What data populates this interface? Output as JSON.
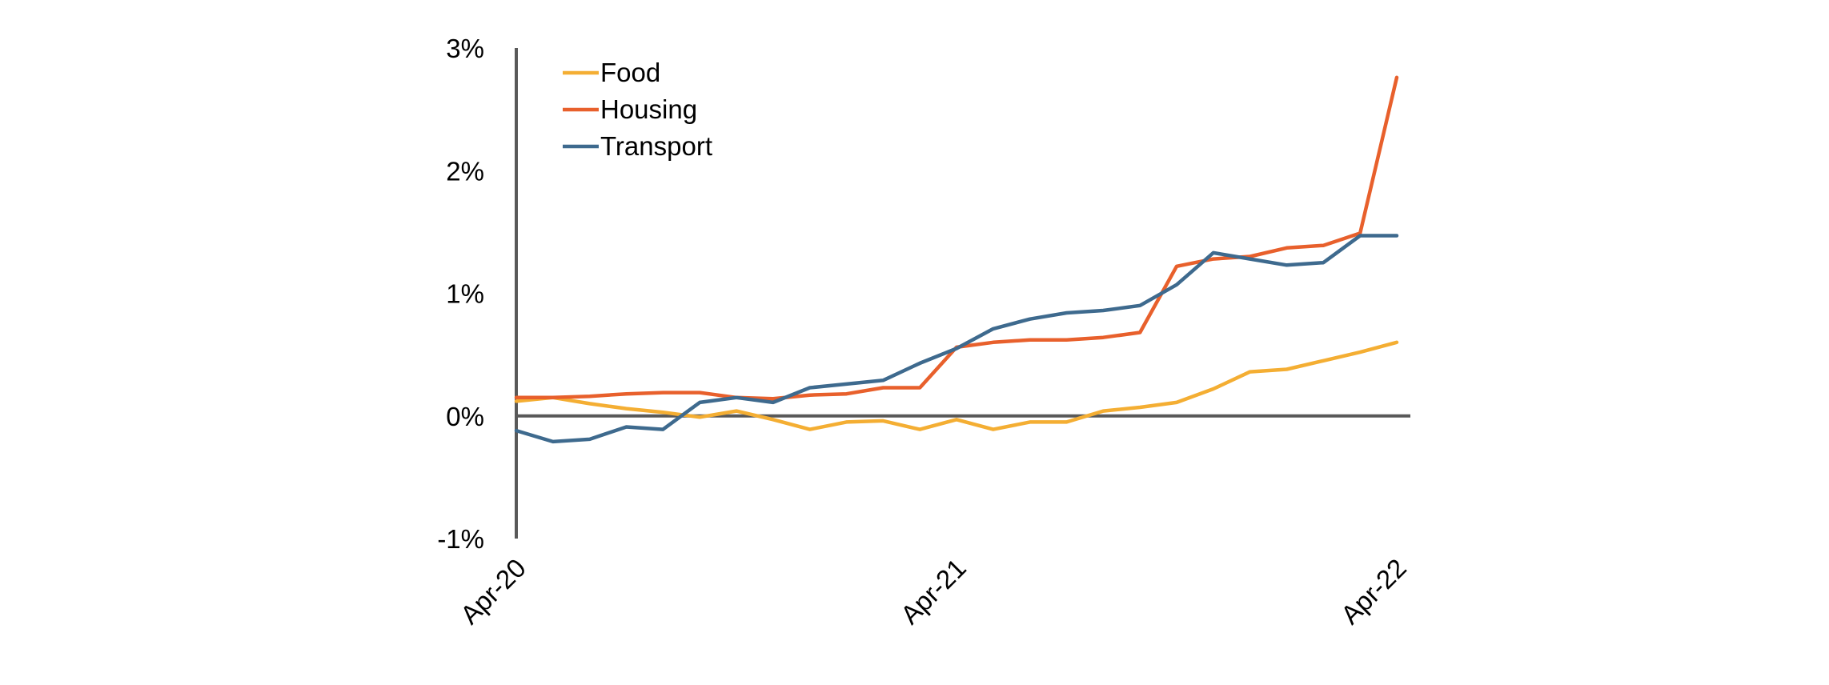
{
  "chart_data": {
    "type": "line",
    "title": "",
    "xlabel": "",
    "ylabel": "",
    "ylim": [
      -1,
      3
    ],
    "yticks": [
      -1,
      0,
      1,
      2,
      3
    ],
    "ytick_labels": [
      "-1%",
      "0%",
      "1%",
      "2%",
      "3%"
    ],
    "x_tick_labels": [
      "Apr-20",
      "Apr-21",
      "Apr-22"
    ],
    "x": [
      "Apr-20",
      "May-20",
      "Jun-20",
      "Jul-20",
      "Aug-20",
      "Sep-20",
      "Oct-20",
      "Nov-20",
      "Dec-20",
      "Jan-21",
      "Feb-21",
      "Mar-21",
      "Apr-21",
      "May-21",
      "Jun-21",
      "Jul-21",
      "Aug-21",
      "Sep-21",
      "Oct-21",
      "Nov-21",
      "Dec-21",
      "Jan-22",
      "Feb-22",
      "Mar-22",
      "Apr-22"
    ],
    "grid": false,
    "legend_position": "top-left",
    "series": [
      {
        "name": "Food",
        "color": "#F4AE33",
        "values": [
          0.12,
          0.15,
          0.1,
          0.06,
          0.03,
          -0.01,
          0.04,
          -0.03,
          -0.11,
          -0.05,
          -0.04,
          -0.11,
          -0.03,
          -0.11,
          -0.05,
          -0.05,
          0.04,
          0.07,
          0.11,
          0.22,
          0.36,
          0.38,
          0.45,
          0.52,
          0.6
        ]
      },
      {
        "name": "Housing",
        "color": "#E8602C",
        "values": [
          0.15,
          0.15,
          0.16,
          0.18,
          0.19,
          0.19,
          0.15,
          0.14,
          0.17,
          0.18,
          0.23,
          0.23,
          0.56,
          0.6,
          0.62,
          0.62,
          0.64,
          0.68,
          1.22,
          1.28,
          1.3,
          1.37,
          1.39,
          1.49,
          2.76
        ]
      },
      {
        "name": "Transport",
        "color": "#3E6A8E",
        "values": [
          -0.12,
          -0.21,
          -0.19,
          -0.09,
          -0.11,
          0.11,
          0.15,
          0.11,
          0.23,
          0.26,
          0.29,
          0.43,
          0.55,
          0.71,
          0.79,
          0.84,
          0.86,
          0.9,
          1.07,
          1.33,
          1.28,
          1.23,
          1.25,
          1.47,
          1.47
        ]
      }
    ]
  }
}
